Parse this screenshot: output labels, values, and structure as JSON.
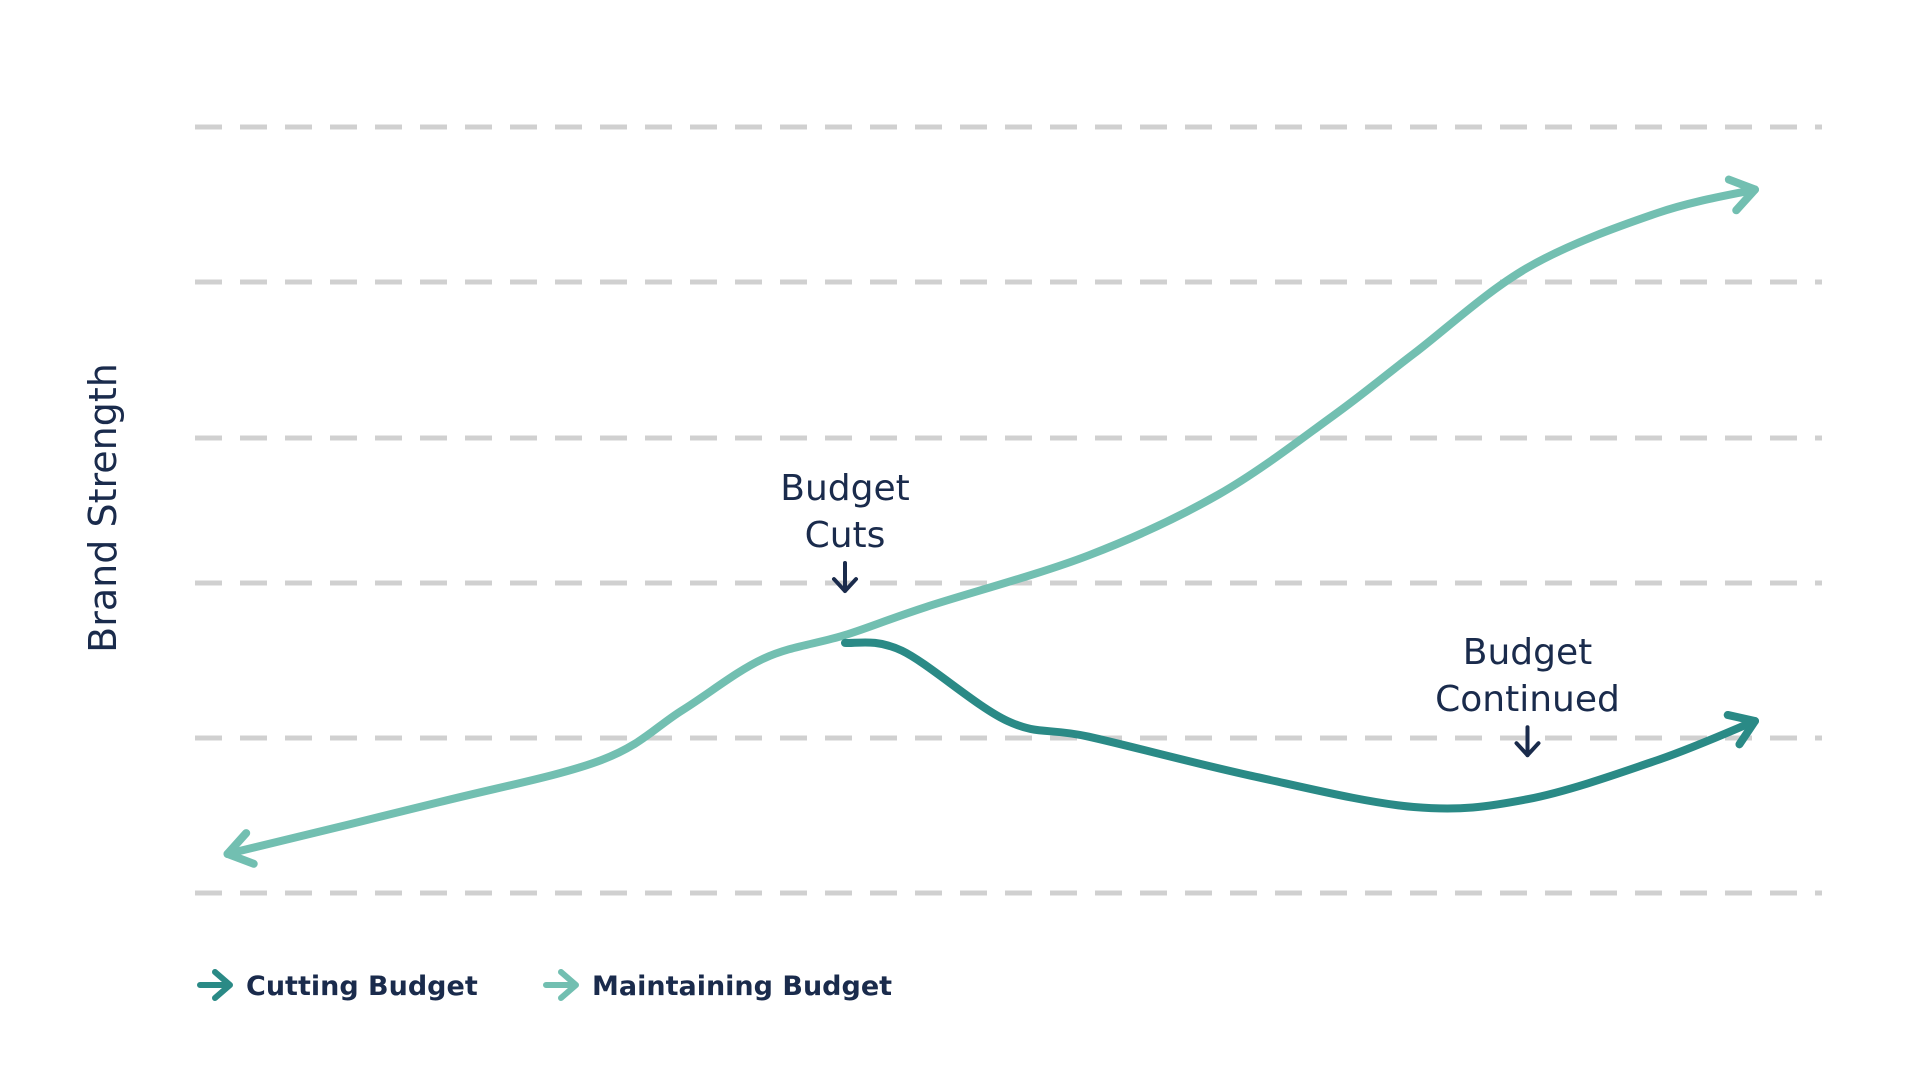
{
  "chart_data": {
    "type": "line",
    "title": "",
    "xlabel": "",
    "ylabel": "Brand Strength",
    "grid": true,
    "grid_style": "dashed",
    "x_ticks": "none",
    "y_ticks": "none",
    "legend_placement": "bottom-left",
    "series": [
      {
        "name": "Cutting Budget",
        "color": "#2a8a86",
        "x": [
          4.0,
          4.35,
          5.0,
          5.5,
          6.5,
          7.5,
          8.2,
          9.0,
          9.6
        ],
        "y": [
          1.6,
          1.55,
          1.1,
          1.0,
          0.75,
          0.55,
          0.6,
          0.85,
          1.1
        ]
      },
      {
        "name": "Maintaining Budget",
        "color": "#72bfb1",
        "x": [
          0.2,
          1.5,
          2.5,
          3.0,
          3.5,
          4.0,
          4.5,
          5.5,
          6.3,
          7.0,
          7.5,
          8.2,
          9.0,
          9.6
        ],
        "y": [
          0.25,
          0.58,
          0.85,
          1.17,
          1.5,
          1.65,
          1.83,
          2.16,
          2.55,
          3.05,
          3.45,
          4.0,
          4.35,
          4.5
        ]
      }
    ],
    "xlim": [
      0,
      10
    ],
    "ylim": [
      0,
      4.9
    ],
    "annotations": [
      {
        "text": [
          "Budget",
          "Cuts"
        ],
        "x": 4.0,
        "y": 1.65
      },
      {
        "text": [
          "Budget",
          "Continued"
        ],
        "x": 8.2,
        "y": 0.6
      }
    ]
  },
  "colors": {
    "text": "#1a2b4c",
    "grid": "#d0d0d0",
    "cutting": "#2a8a86",
    "maintaining": "#72bfb1"
  }
}
